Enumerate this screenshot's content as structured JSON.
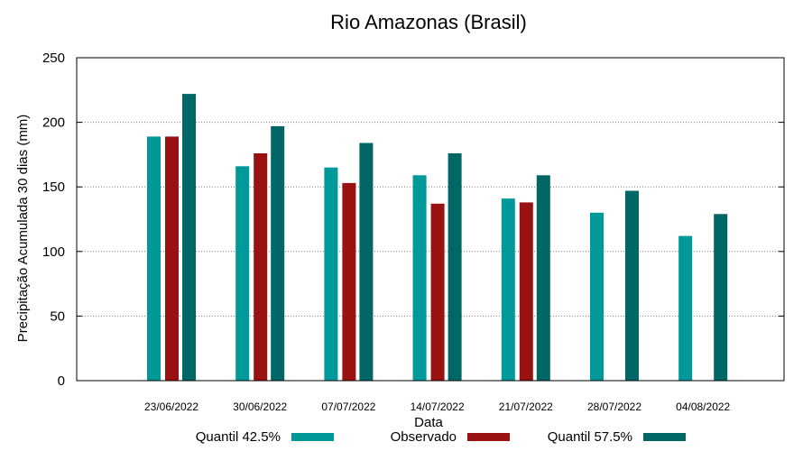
{
  "chart_data": {
    "type": "bar",
    "title": "Rio Amazonas (Brasil)",
    "xlabel": "Data",
    "ylabel": "Precipitação Acumulada 30 dias (mm)",
    "ylim": [
      0,
      250
    ],
    "yticks": [
      0,
      50,
      100,
      150,
      200,
      250
    ],
    "grid": true,
    "legend_position": "bottom",
    "categories": [
      "23/06/2022",
      "30/06/2022",
      "07/07/2022",
      "14/07/2022",
      "21/07/2022",
      "28/07/2022",
      "04/08/2022"
    ],
    "series": [
      {
        "name": "Quantil 42.5%",
        "color": "#009999",
        "values": [
          189,
          166,
          165,
          159,
          141,
          130,
          112
        ]
      },
      {
        "name": "Observado",
        "color": "#991111",
        "values": [
          189,
          176,
          153,
          137,
          138,
          null,
          null
        ]
      },
      {
        "name": "Quantil 57.5%",
        "color": "#006666",
        "values": [
          222,
          197,
          184,
          176,
          159,
          147,
          129
        ]
      }
    ]
  }
}
